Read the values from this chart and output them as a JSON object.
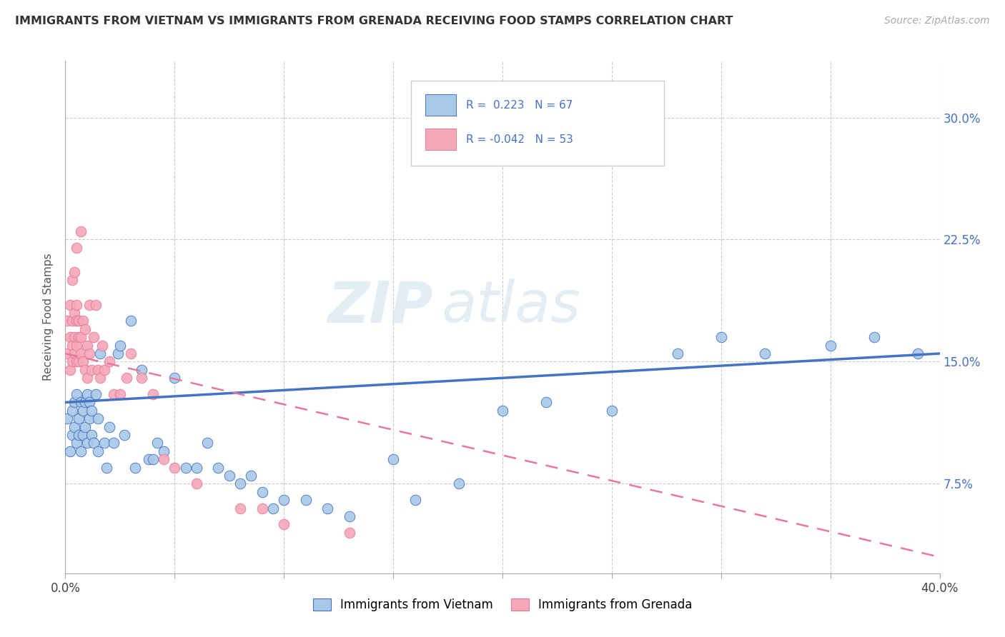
{
  "title": "IMMIGRANTS FROM VIETNAM VS IMMIGRANTS FROM GRENADA RECEIVING FOOD STAMPS CORRELATION CHART",
  "source": "Source: ZipAtlas.com",
  "ylabel": "Receiving Food Stamps",
  "yticks": [
    "7.5%",
    "15.0%",
    "22.5%",
    "30.0%"
  ],
  "ytick_vals": [
    0.075,
    0.15,
    0.225,
    0.3
  ],
  "xlim": [
    0.0,
    0.4
  ],
  "ylim": [
    0.02,
    0.335
  ],
  "R_vietnam": 0.223,
  "N_vietnam": 67,
  "R_grenada": -0.042,
  "N_grenada": 53,
  "legend_label_vietnam": "Immigrants from Vietnam",
  "legend_label_grenada": "Immigrants from Grenada",
  "color_vietnam": "#a8c8e8",
  "color_grenada": "#f4a8b8",
  "line_color_vietnam": "#4472c4",
  "line_color_grenada": "#e8789a",
  "watermark_zip": "ZIP",
  "watermark_atlas": "atlas",
  "vietnam_x": [
    0.001,
    0.002,
    0.003,
    0.003,
    0.004,
    0.004,
    0.005,
    0.005,
    0.006,
    0.006,
    0.007,
    0.007,
    0.008,
    0.008,
    0.009,
    0.009,
    0.01,
    0.01,
    0.011,
    0.011,
    0.012,
    0.012,
    0.013,
    0.014,
    0.015,
    0.015,
    0.016,
    0.018,
    0.019,
    0.02,
    0.022,
    0.024,
    0.025,
    0.027,
    0.03,
    0.032,
    0.035,
    0.038,
    0.04,
    0.042,
    0.045,
    0.05,
    0.055,
    0.06,
    0.065,
    0.07,
    0.075,
    0.08,
    0.085,
    0.09,
    0.095,
    0.1,
    0.11,
    0.12,
    0.13,
    0.15,
    0.16,
    0.18,
    0.2,
    0.22,
    0.25,
    0.28,
    0.3,
    0.32,
    0.35,
    0.37,
    0.39
  ],
  "vietnam_y": [
    0.115,
    0.095,
    0.105,
    0.12,
    0.11,
    0.125,
    0.1,
    0.13,
    0.105,
    0.115,
    0.095,
    0.125,
    0.105,
    0.12,
    0.11,
    0.125,
    0.1,
    0.13,
    0.115,
    0.125,
    0.105,
    0.12,
    0.1,
    0.13,
    0.115,
    0.095,
    0.155,
    0.1,
    0.085,
    0.11,
    0.1,
    0.155,
    0.16,
    0.105,
    0.175,
    0.085,
    0.145,
    0.09,
    0.09,
    0.1,
    0.095,
    0.14,
    0.085,
    0.085,
    0.1,
    0.085,
    0.08,
    0.075,
    0.08,
    0.07,
    0.06,
    0.065,
    0.065,
    0.06,
    0.055,
    0.09,
    0.065,
    0.075,
    0.12,
    0.125,
    0.12,
    0.155,
    0.165,
    0.155,
    0.16,
    0.165,
    0.155
  ],
  "grenada_x": [
    0.001,
    0.001,
    0.002,
    0.002,
    0.002,
    0.003,
    0.003,
    0.003,
    0.003,
    0.004,
    0.004,
    0.004,
    0.004,
    0.005,
    0.005,
    0.005,
    0.005,
    0.005,
    0.006,
    0.006,
    0.006,
    0.007,
    0.007,
    0.007,
    0.008,
    0.008,
    0.009,
    0.009,
    0.01,
    0.01,
    0.011,
    0.011,
    0.012,
    0.013,
    0.014,
    0.015,
    0.016,
    0.017,
    0.018,
    0.02,
    0.022,
    0.025,
    0.028,
    0.03,
    0.035,
    0.04,
    0.045,
    0.05,
    0.06,
    0.08,
    0.09,
    0.1,
    0.13
  ],
  "grenada_y": [
    0.155,
    0.175,
    0.145,
    0.165,
    0.185,
    0.15,
    0.16,
    0.175,
    0.2,
    0.155,
    0.165,
    0.18,
    0.205,
    0.15,
    0.16,
    0.175,
    0.185,
    0.22,
    0.15,
    0.165,
    0.175,
    0.155,
    0.165,
    0.23,
    0.15,
    0.175,
    0.145,
    0.17,
    0.14,
    0.16,
    0.155,
    0.185,
    0.145,
    0.165,
    0.185,
    0.145,
    0.14,
    0.16,
    0.145,
    0.15,
    0.13,
    0.13,
    0.14,
    0.155,
    0.14,
    0.13,
    0.09,
    0.085,
    0.075,
    0.06,
    0.06,
    0.05,
    0.045
  ]
}
